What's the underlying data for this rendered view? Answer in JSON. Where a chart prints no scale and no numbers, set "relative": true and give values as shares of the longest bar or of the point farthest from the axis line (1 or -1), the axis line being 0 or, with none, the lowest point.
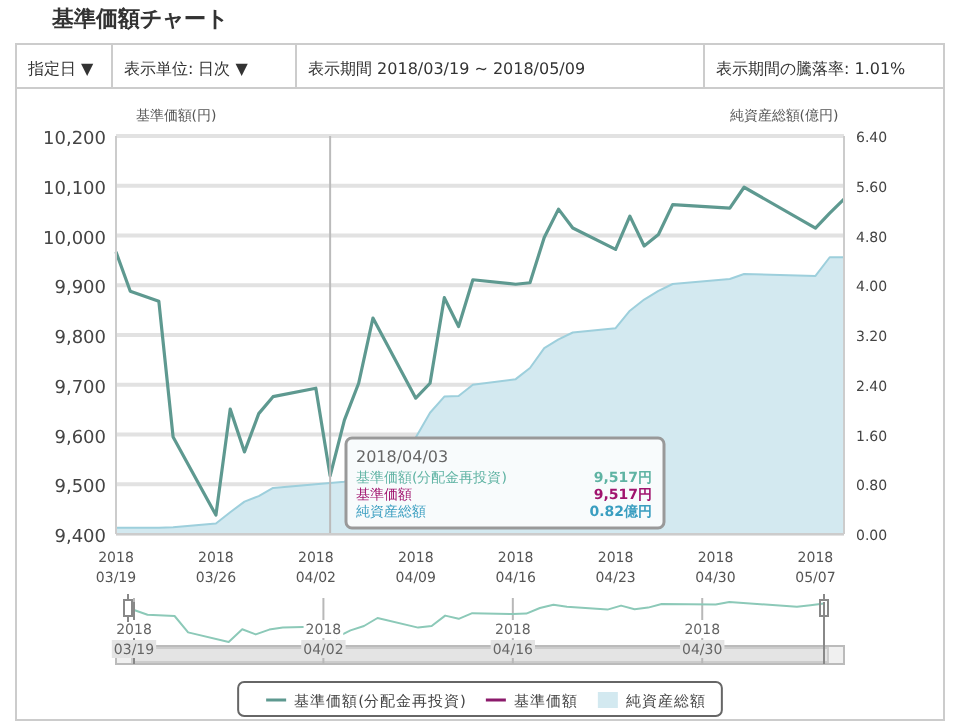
{
  "chart_data": [
    {
      "type": "line",
      "title": "基準価額チャート",
      "ylabel": "基準価額(円)",
      "y2label": "純資産総額(億円)",
      "annotations": [
        "指定日 ▼",
        "表示単位: 日次 ▼",
        "表示期間 2018/03/19 ~ 2018/05/09",
        "表示期間の騰落率: 1.01%",
        "2018/04/03",
        "基準価額(分配金再投資)",
        "9,517円",
        "基準価額",
        "9,517円",
        "純資産総額",
        "0.82億円"
      ],
      "x": [
        "2018-03-19",
        "2018-03-20",
        "2018-03-22",
        "2018-03-23",
        "2018-03-26",
        "2018-03-27",
        "2018-03-28",
        "2018-03-29",
        "2018-03-30",
        "2018-04-02",
        "2018-04-03",
        "2018-04-04",
        "2018-04-05",
        "2018-04-06",
        "2018-04-09",
        "2018-04-10",
        "2018-04-11",
        "2018-04-12",
        "2018-04-13",
        "2018-04-16",
        "2018-04-17",
        "2018-04-18",
        "2018-04-19",
        "2018-04-20",
        "2018-04-23",
        "2018-04-24",
        "2018-04-25",
        "2018-04-26",
        "2018-04-27",
        "2018-05-01",
        "2018-05-02",
        "2018-05-07",
        "2018-05-08",
        "2018-05-09"
      ],
      "series": [
        {
          "name": "純資産総額",
          "type": "area",
          "axis": "y2",
          "color": "#d3e9f0",
          "values": [
            0.1,
            0.1,
            0.1,
            0.11,
            0.17,
            0.35,
            0.52,
            0.61,
            0.74,
            0.8,
            0.82,
            0.84,
            null,
            null,
            1.55,
            1.95,
            2.21,
            2.22,
            2.4,
            2.49,
            2.67,
            2.99,
            3.13,
            3.24,
            3.31,
            3.59,
            3.77,
            3.91,
            4.02,
            4.1,
            4.18,
            4.15,
            4.45,
            4.45
          ]
        },
        {
          "name": "基準価額(分配金再投資)",
          "type": "line",
          "color": "#5e9990",
          "values": [
            9967,
            9888,
            9868,
            9595,
            9438,
            9651,
            9565,
            9642,
            9676,
            9693,
            9517,
            9629,
            9703,
            9834,
            9673,
            9703,
            9875,
            9817,
            9911,
            9902,
            9905,
            9996,
            10053,
            10015,
            9972,
            10039,
            9979,
            10002,
            10062,
            10055,
            10097,
            10015,
            10045,
            10073
          ]
        },
        {
          "name": "基準価額",
          "type": "line",
          "color": "#8b1a6b",
          "values": [
            null,
            null,
            null,
            null,
            null,
            null,
            null,
            null,
            null,
            null,
            null,
            null,
            null,
            null,
            null,
            null,
            null,
            null,
            null,
            null,
            null,
            null,
            null,
            null,
            null,
            null,
            null,
            null,
            null,
            null,
            null,
            null,
            null,
            null
          ]
        }
      ],
      "xlim": [
        "2018-03-19",
        "2018-05-09"
      ],
      "xticks": [
        {
          "value": "2018-03-19",
          "label": "2018\n03/19"
        },
        {
          "value": "2018-03-26",
          "label": "2018\n03/26"
        },
        {
          "value": "2018-04-02",
          "label": "2018\n04/02"
        },
        {
          "value": "2018-04-09",
          "label": "2018\n04/09"
        },
        {
          "value": "2018-04-16",
          "label": "2018\n04/16"
        },
        {
          "value": "2018-04-23",
          "label": "2018\n04/23"
        },
        {
          "value": "2018-04-30",
          "label": "2018\n04/30"
        },
        {
          "value": "2018-05-07",
          "label": "2018\n05/07"
        }
      ],
      "ylim": [
        9400,
        10200
      ],
      "yticks": [
        {
          "value": 9400,
          "label": "9,400"
        },
        {
          "value": 9500,
          "label": "9,500"
        },
        {
          "value": 9600,
          "label": "9,600"
        },
        {
          "value": 9700,
          "label": "9,700"
        },
        {
          "value": 9800,
          "label": "9,800"
        },
        {
          "value": 9900,
          "label": "9,900"
        },
        {
          "value": 10000,
          "label": "10,000"
        },
        {
          "value": 10100,
          "label": "10,100"
        },
        {
          "value": 10200,
          "label": "10,200"
        }
      ],
      "y2lim": [
        0,
        6.4
      ],
      "y2ticks": [
        {
          "value": 0,
          "label": "0.00"
        },
        {
          "value": 0.8,
          "label": "0.80"
        },
        {
          "value": 1.6,
          "label": "1.60"
        },
        {
          "value": 2.4,
          "label": "2.40"
        },
        {
          "value": 3.2,
          "label": "3.20"
        },
        {
          "value": 4.0,
          "label": "4.00"
        },
        {
          "value": 4.8,
          "label": "4.80"
        },
        {
          "value": 5.6,
          "label": "5.60"
        },
        {
          "value": 6.4,
          "label": "6.40"
        }
      ],
      "ref_lines": [
        {
          "axis": "x",
          "value": "2018-04-03",
          "color": "#bbbbbb"
        }
      ],
      "grid": "y",
      "legend": "bottom"
    },
    {
      "type": "line",
      "x": [
        "2018-03-19",
        "2018-03-20",
        "2018-03-22",
        "2018-03-23",
        "2018-03-26",
        "2018-03-27",
        "2018-03-28",
        "2018-03-29",
        "2018-03-30",
        "2018-04-02",
        "2018-04-03",
        "2018-04-04",
        "2018-04-05",
        "2018-04-06",
        "2018-04-09",
        "2018-04-10",
        "2018-04-11",
        "2018-04-12",
        "2018-04-13",
        "2018-04-16",
        "2018-04-17",
        "2018-04-18",
        "2018-04-19",
        "2018-04-20",
        "2018-04-23",
        "2018-04-24",
        "2018-04-25",
        "2018-04-26",
        "2018-04-27",
        "2018-05-01",
        "2018-05-02",
        "2018-05-07",
        "2018-05-08",
        "2018-05-09"
      ],
      "series": [
        {
          "color": "#8cc9b8",
          "values": [
            0.8,
            0.68,
            0.65,
            0.24,
            0,
            0.32,
            0.19,
            0.31,
            0.36,
            0.39,
            0.12,
            0.29,
            0.4,
            0.6,
            0.36,
            0.4,
            0.66,
            0.58,
            0.72,
            0.7,
            0.71,
            0.85,
            0.93,
            0.88,
            0.81,
            0.91,
            0.82,
            0.86,
            0.95,
            0.94,
            1,
            0.88,
            0.92,
            0.96
          ]
        }
      ],
      "xlim": [
        "2018-03-19",
        "2018-05-09"
      ],
      "xticks": [
        {
          "value": "2018-03-19",
          "label": "2018\n03/19"
        },
        {
          "value": "2018-04-02",
          "label": "2018\n04/02"
        },
        {
          "value": "2018-04-16",
          "label": "2018\n04/16"
        },
        {
          "value": "2018-04-30",
          "label": "2018\n04/30"
        }
      ],
      "relative": true,
      "tick_labels": "x",
      "grid": "x"
    }
  ]
}
